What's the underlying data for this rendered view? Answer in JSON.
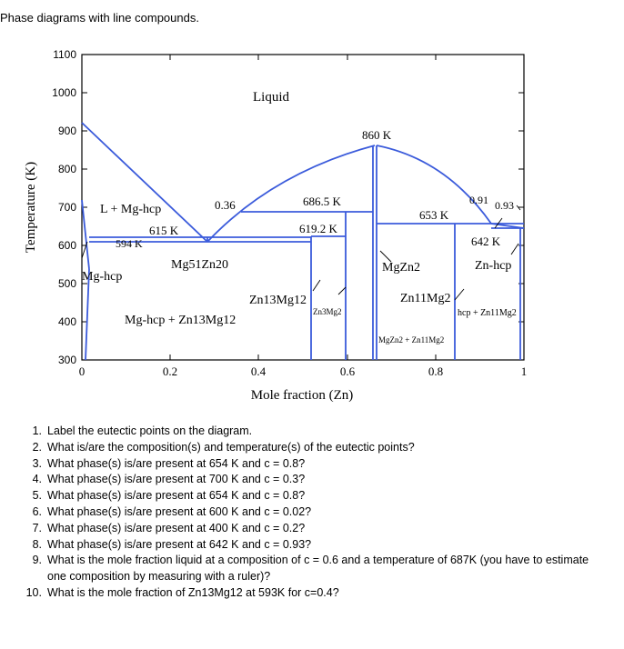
{
  "title": "Phase diagrams with line compounds.",
  "diagram": {
    "ylabel": "Temperature (K)",
    "xlabel": "Mole fraction (Zn)",
    "y_ticks": [
      "1100",
      "1000",
      "900",
      "800",
      "700",
      "600",
      "500",
      "400",
      "300"
    ],
    "x_ticks": [
      "0",
      "0.2",
      "0.4",
      "0.6",
      "0.8",
      "1"
    ],
    "labels": {
      "liquid": "Liquid",
      "k860": "860 K",
      "l_mg_hcp": "L + Mg-hcp",
      "c036": "0.36",
      "k686": "686.5 K",
      "k615": "615 K",
      "k594": "594 K",
      "k619": "619.2 K",
      "k653": "653 K",
      "c091": "0.91",
      "c093": "0.93",
      "k642": "642 K",
      "mg51zn20": "Mg51Zn20",
      "mgzn2": "MgZn2",
      "zn_hcp": "Zn-hcp",
      "mg_hcp": "Mg-hcp",
      "zn13mg12": "Zn13Mg12",
      "zn3mg2": "Zn3Mg2",
      "zn11mg2": "Zn11Mg2",
      "mghcp_zn13mg12": "Mg-hcp + Zn13Mg12",
      "hcp_zn11mg2": "hcp + Zn11Mg2",
      "mgzn2_zn11mg2": "MgZn2 + Zn11Mg2"
    }
  },
  "questions": [
    {
      "num": "1.",
      "text": "Label the eutectic points on the diagram."
    },
    {
      "num": "2.",
      "text": "What is/are the composition(s) and temperature(s) of the eutectic points?"
    },
    {
      "num": "3.",
      "text": "What phase(s) is/are present at 654 K and c = 0.8?"
    },
    {
      "num": "4.",
      "text": "What phase(s) is/are present at 700 K and c = 0.3?"
    },
    {
      "num": "5.",
      "text": "What phase(s) is/are present at 654 K and c = 0.8?"
    },
    {
      "num": "6.",
      "text": "What phase(s) is/are present at 600 K and c = 0.02?"
    },
    {
      "num": "7.",
      "text": "What phase(s) is/are present at 400 K and c = 0.2?"
    },
    {
      "num": "8.",
      "text": "What phase(s) is/are present at 642 K and c = 0.93?"
    },
    {
      "num": "9.",
      "text": "What is the mole fraction liquid at a composition of c = 0.6 and a temperature of 687K (you have to estimate one composition by measuring with a  ruler)?"
    },
    {
      "num": "10.",
      "text": "What is the mole fraction of Zn13Mg12 at 593K for c=0.4?"
    }
  ],
  "colors": {
    "phase_line": "#3b5bdb",
    "axis": "#000000"
  }
}
